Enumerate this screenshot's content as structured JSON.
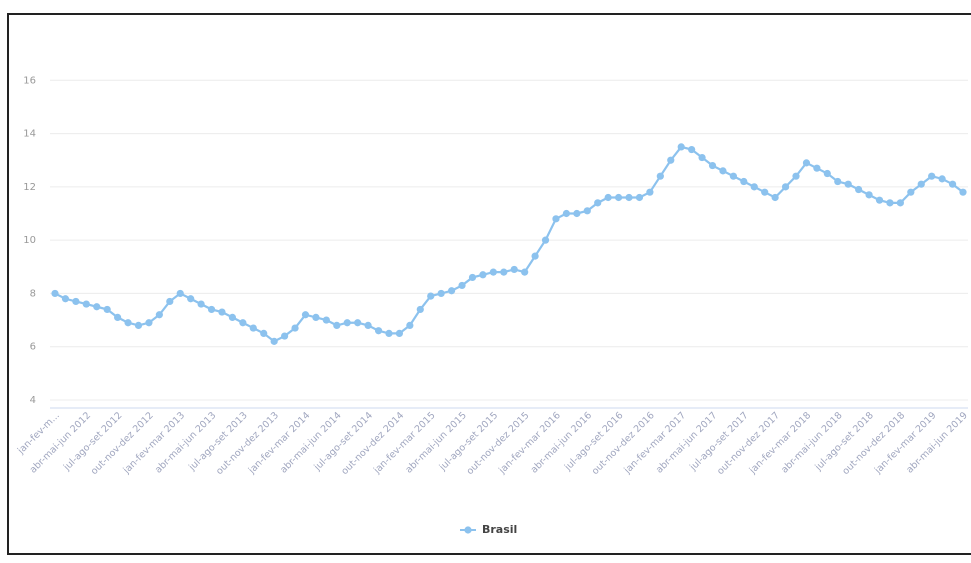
{
  "chart_data": {
    "type": "line",
    "categories": [
      "jan-fev-m...",
      null,
      null,
      "abr-mai-jun 2012",
      null,
      null,
      "jul-ago-set 2012",
      null,
      null,
      "out-nov-dez 2012",
      null,
      null,
      "jan-fev-mar 2013",
      null,
      null,
      "abr-mai-jun 2013",
      null,
      null,
      "jul-ago-set 2013",
      null,
      null,
      "out-nov-dez 2013",
      null,
      null,
      "jan-fev-mar 2014",
      null,
      null,
      "abr-mai-jun 2014",
      null,
      null,
      "jul-ago-set 2014",
      null,
      null,
      "out-nov-dez 2014",
      null,
      null,
      "jan-fev-mar 2015",
      null,
      null,
      "abr-mai-jun 2015",
      null,
      null,
      "jul-ago-set 2015",
      null,
      null,
      "out-nov-dez 2015",
      null,
      null,
      "jan-fev-mar 2016",
      null,
      null,
      "abr-mai-jun 2016",
      null,
      null,
      "jul-ago-set 2016",
      null,
      null,
      "out-nov-dez 2016",
      null,
      null,
      "jan-fev-mar 2017",
      null,
      null,
      "abr-mai-jun 2017",
      null,
      null,
      "jul-ago-set 2017",
      null,
      null,
      "out-nov-dez 2017",
      null,
      null,
      "jan-fev-mar 2018",
      null,
      null,
      "abr-mai-jun 2018",
      null,
      null,
      "jul-ago-set 2018",
      null,
      null,
      "out-nov-dez 2018",
      null,
      null,
      "jan-fev-mar 2019",
      null,
      null,
      "abr-mai-jun 2019"
    ],
    "series": [
      {
        "name": "Brasil",
        "color": "#8cc2ee",
        "values": [
          8.0,
          7.8,
          7.7,
          7.6,
          7.5,
          7.4,
          7.1,
          6.9,
          6.8,
          6.9,
          7.2,
          7.7,
          8.0,
          7.8,
          7.6,
          7.4,
          7.3,
          7.1,
          6.9,
          6.7,
          6.5,
          6.2,
          6.4,
          6.7,
          7.2,
          7.1,
          7.0,
          6.8,
          6.9,
          6.9,
          6.8,
          6.6,
          6.5,
          6.5,
          6.8,
          7.4,
          7.9,
          8.0,
          8.1,
          8.3,
          8.6,
          8.7,
          8.8,
          8.8,
          8.9,
          8.8,
          9.4,
          10.0,
          10.8,
          11.0,
          11.0,
          11.1,
          11.4,
          11.6,
          11.6,
          11.6,
          11.6,
          11.8,
          12.4,
          13.0,
          13.5,
          13.4,
          13.1,
          12.8,
          12.6,
          12.4,
          12.2,
          12.0,
          11.8,
          11.6,
          12.0,
          12.4,
          12.9,
          12.7,
          12.5,
          12.2,
          12.1,
          11.9,
          11.7,
          11.5,
          11.4,
          11.4,
          11.8,
          12.1,
          12.4,
          12.3,
          12.1,
          11.8
        ]
      }
    ],
    "ylim": [
      4,
      18
    ],
    "yticks": [
      4,
      6,
      8,
      10,
      12,
      14,
      16
    ],
    "grid": true,
    "legend": "bottom"
  }
}
